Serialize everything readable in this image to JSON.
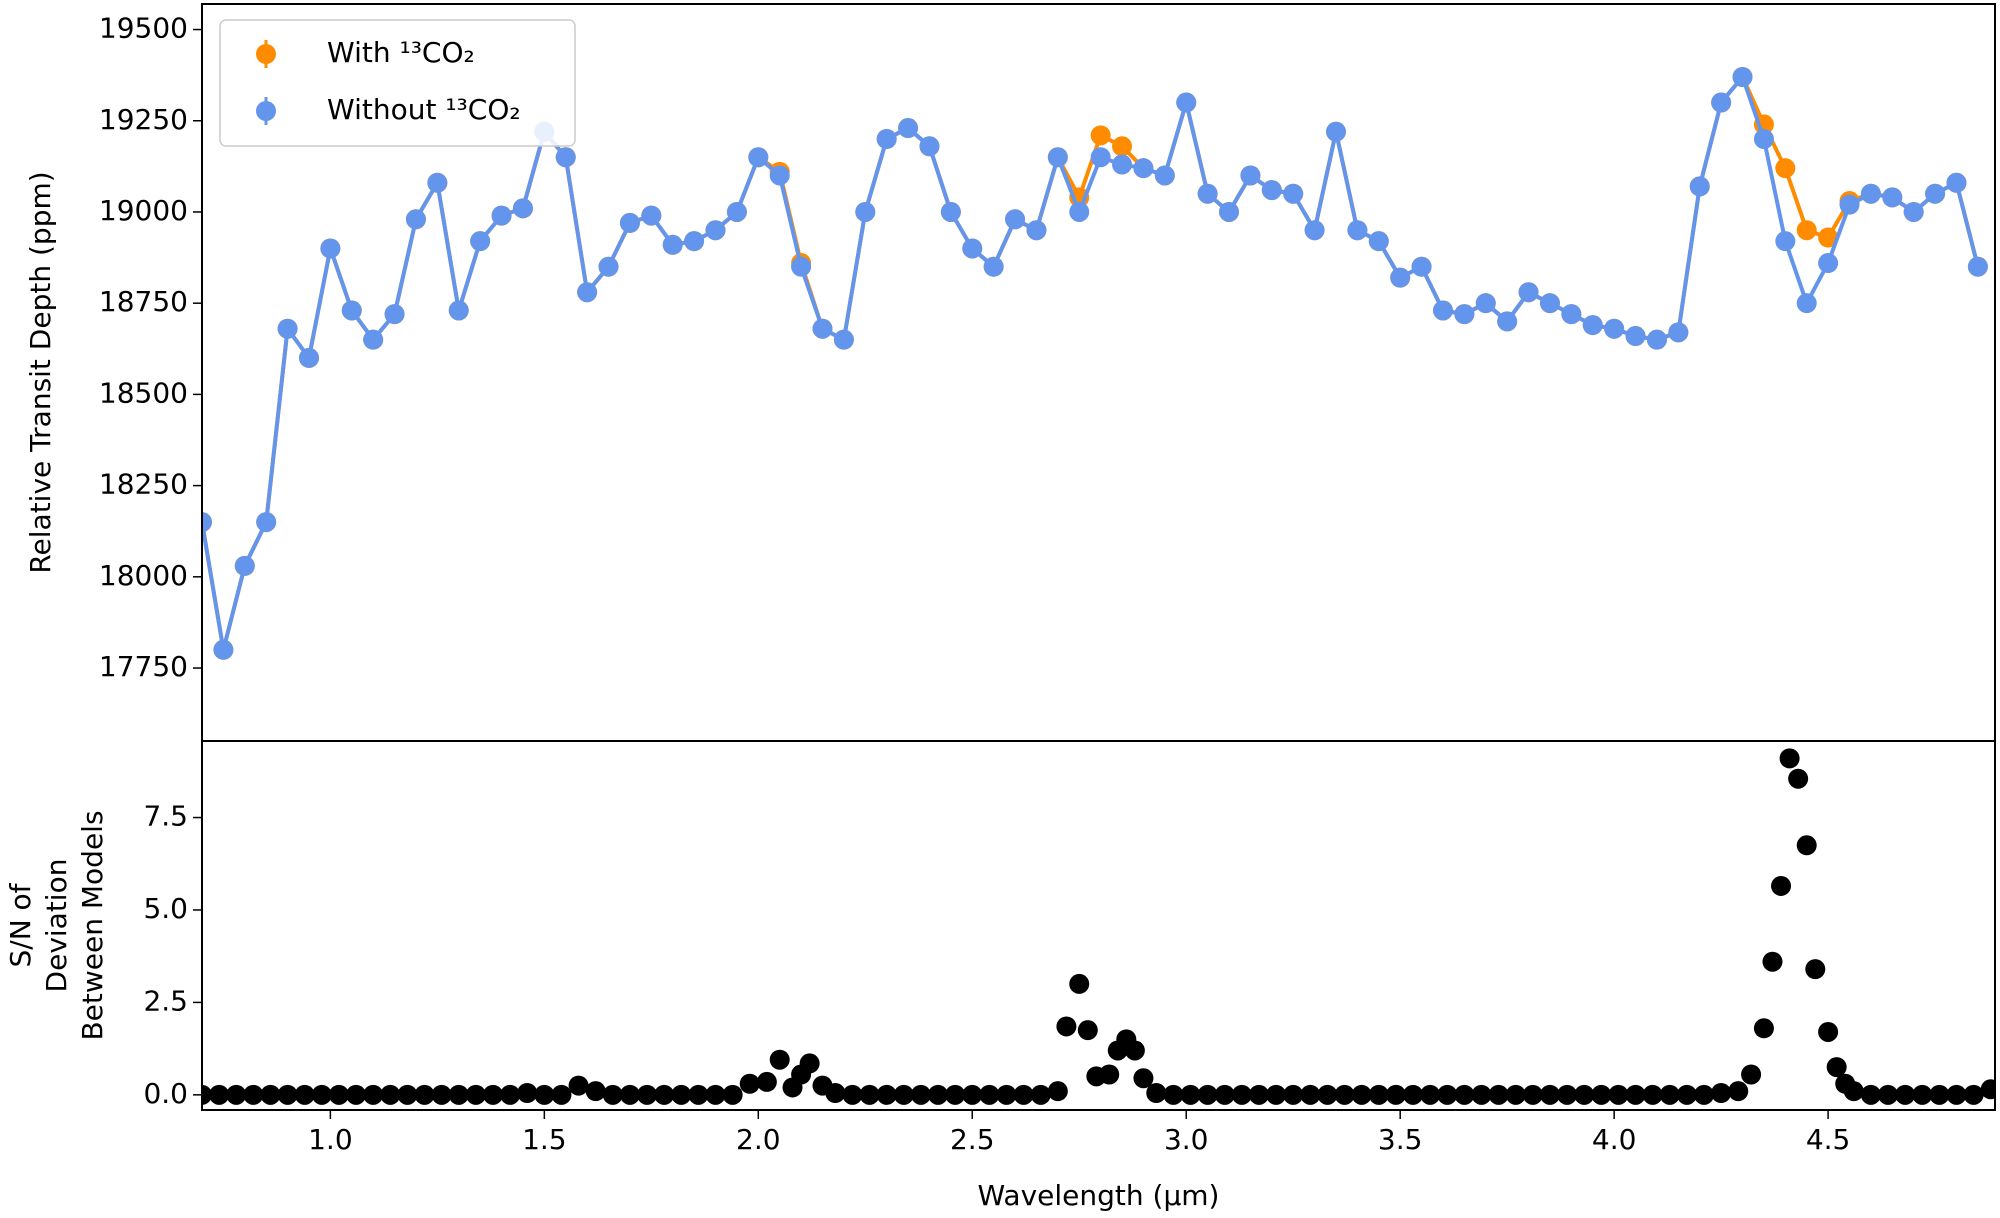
{
  "chart_data": [
    {
      "type": "line",
      "y_label": "Relative Transit Depth (ppm)",
      "legend": "upper left",
      "xlim": [
        0.7,
        4.89
      ],
      "ylim": [
        17550,
        19570
      ],
      "yticks": [
        17750,
        18000,
        18250,
        18500,
        18750,
        19000,
        19250,
        19500
      ],
      "x": [
        0.7,
        0.75,
        0.8,
        0.85,
        0.9,
        0.95,
        1.0,
        1.05,
        1.1,
        1.15,
        1.2,
        1.25,
        1.3,
        1.35,
        1.4,
        1.45,
        1.5,
        1.55,
        1.6,
        1.65,
        1.7,
        1.75,
        1.8,
        1.85,
        1.9,
        1.95,
        2.0,
        2.05,
        2.1,
        2.15,
        2.2,
        2.25,
        2.3,
        2.35,
        2.4,
        2.45,
        2.5,
        2.55,
        2.6,
        2.65,
        2.7,
        2.75,
        2.8,
        2.85,
        2.9,
        2.95,
        3.0,
        3.05,
        3.1,
        3.15,
        3.2,
        3.25,
        3.3,
        3.35,
        3.4,
        3.45,
        3.5,
        3.55,
        3.6,
        3.65,
        3.7,
        3.75,
        3.8,
        3.85,
        3.9,
        3.95,
        4.0,
        4.05,
        4.1,
        4.15,
        4.2,
        4.25,
        4.3,
        4.35,
        4.4,
        4.45,
        4.5,
        4.55,
        4.6,
        4.65,
        4.7,
        4.75,
        4.8,
        4.85
      ],
      "series": [
        {
          "name": "With ¹³CO₂",
          "color": "#ff8c00",
          "values": [
            18150,
            17800,
            18030,
            18150,
            18680,
            18600,
            18900,
            18730,
            18650,
            18720,
            18980,
            19080,
            18730,
            18920,
            18990,
            19010,
            19220,
            19150,
            18780,
            18850,
            18970,
            18990,
            18910,
            18920,
            18950,
            19000,
            19150,
            19110,
            18860,
            18680,
            18650,
            19000,
            19200,
            19230,
            19180,
            19000,
            18900,
            18850,
            18980,
            18950,
            19150,
            19040,
            19210,
            19180,
            19120,
            19100,
            19300,
            19050,
            19000,
            19100,
            19060,
            19050,
            18950,
            19220,
            18950,
            18920,
            18820,
            18850,
            18730,
            18720,
            18750,
            18700,
            18780,
            18750,
            18720,
            18690,
            18680,
            18660,
            18650,
            18670,
            19070,
            19300,
            19370,
            19240,
            19120,
            18950,
            18930,
            19030,
            19050,
            19040,
            19000,
            19050,
            19080,
            18850
          ]
        },
        {
          "name": "Without ¹³CO₂",
          "color": "#6495ed",
          "values": [
            18150,
            17800,
            18030,
            18150,
            18680,
            18600,
            18900,
            18730,
            18650,
            18720,
            18980,
            19080,
            18730,
            18920,
            18990,
            19010,
            19220,
            19150,
            18780,
            18850,
            18970,
            18990,
            18910,
            18920,
            18950,
            19000,
            19150,
            19100,
            18850,
            18680,
            18650,
            19000,
            19200,
            19230,
            19180,
            19000,
            18900,
            18850,
            18980,
            18950,
            19150,
            19000,
            19150,
            19130,
            19120,
            19100,
            19300,
            19050,
            19000,
            19100,
            19060,
            19050,
            18950,
            19220,
            18950,
            18920,
            18820,
            18850,
            18730,
            18720,
            18750,
            18700,
            18780,
            18750,
            18720,
            18690,
            18680,
            18660,
            18650,
            18670,
            19070,
            19300,
            19370,
            19200,
            18920,
            18750,
            18860,
            19020,
            19050,
            19040,
            19000,
            19050,
            19080,
            18850
          ]
        }
      ]
    },
    {
      "type": "scatter",
      "y_label": [
        "S/N of",
        "Deviation",
        "Between Models"
      ],
      "x_label": "Wavelength (μm)",
      "color": "#000000",
      "xlim": [
        0.7,
        4.89
      ],
      "xticks": [
        {
          "value": 1,
          "label": "1.0"
        },
        1.5,
        {
          "value": 2,
          "label": "2.0"
        },
        2.5,
        {
          "value": 3,
          "label": "3.0"
        },
        3.5,
        {
          "value": 4,
          "label": "4.0"
        },
        4.5
      ],
      "ylim": [
        -0.41,
        9.57
      ],
      "yticks": [
        {
          "value": 0,
          "label": "0.0"
        },
        2.5,
        {
          "value": 5,
          "label": "5.0"
        },
        7.5
      ],
      "x": [
        0.7,
        0.74,
        0.78,
        0.82,
        0.86,
        0.9,
        0.94,
        0.98,
        1.02,
        1.06,
        1.1,
        1.14,
        1.18,
        1.22,
        1.26,
        1.3,
        1.34,
        1.38,
        1.42,
        1.46,
        1.5,
        1.54,
        1.58,
        1.62,
        1.66,
        1.7,
        1.74,
        1.78,
        1.82,
        1.86,
        1.9,
        1.94,
        1.98,
        2.02,
        2.05,
        2.08,
        2.1,
        2.12,
        2.15,
        2.18,
        2.22,
        2.26,
        2.3,
        2.34,
        2.38,
        2.42,
        2.46,
        2.5,
        2.54,
        2.58,
        2.62,
        2.66,
        2.7,
        2.72,
        2.75,
        2.77,
        2.79,
        2.82,
        2.84,
        2.86,
        2.88,
        2.9,
        2.93,
        2.97,
        3.01,
        3.05,
        3.09,
        3.13,
        3.17,
        3.21,
        3.25,
        3.29,
        3.33,
        3.37,
        3.41,
        3.45,
        3.49,
        3.53,
        3.57,
        3.61,
        3.65,
        3.69,
        3.73,
        3.77,
        3.81,
        3.85,
        3.89,
        3.93,
        3.97,
        4.01,
        4.05,
        4.09,
        4.13,
        4.17,
        4.21,
        4.25,
        4.29,
        4.32,
        4.35,
        4.37,
        4.39,
        4.41,
        4.43,
        4.45,
        4.47,
        4.5,
        4.52,
        4.54,
        4.56,
        4.6,
        4.64,
        4.68,
        4.72,
        4.76,
        4.8,
        4.84,
        4.88
      ],
      "values": [
        0,
        0,
        0,
        0,
        0,
        0,
        0,
        0,
        0,
        0,
        0,
        0,
        0,
        0,
        0,
        0,
        0,
        0,
        0,
        0.05,
        0,
        0,
        0.25,
        0.1,
        0,
        0,
        0,
        0,
        0,
        0,
        0,
        0,
        0.3,
        0.35,
        0.95,
        0.2,
        0.55,
        0.85,
        0.25,
        0.05,
        0,
        0,
        0,
        0,
        0,
        0,
        0,
        0,
        0,
        0,
        0,
        0,
        0.1,
        1.85,
        3.0,
        1.75,
        0.5,
        0.55,
        1.2,
        1.5,
        1.2,
        0.45,
        0.05,
        0,
        0,
        0,
        0,
        0,
        0,
        0,
        0,
        0,
        0,
        0,
        0,
        0,
        0,
        0,
        0,
        0,
        0,
        0,
        0,
        0,
        0,
        0,
        0,
        0,
        0,
        0,
        0,
        0,
        0,
        0,
        0,
        0.05,
        0.1,
        0.55,
        1.8,
        3.6,
        5.65,
        9.1,
        8.55,
        6.75,
        3.4,
        1.7,
        0.75,
        0.3,
        0.1,
        0,
        0,
        0,
        0,
        0,
        0,
        0,
        0.15
      ]
    }
  ]
}
